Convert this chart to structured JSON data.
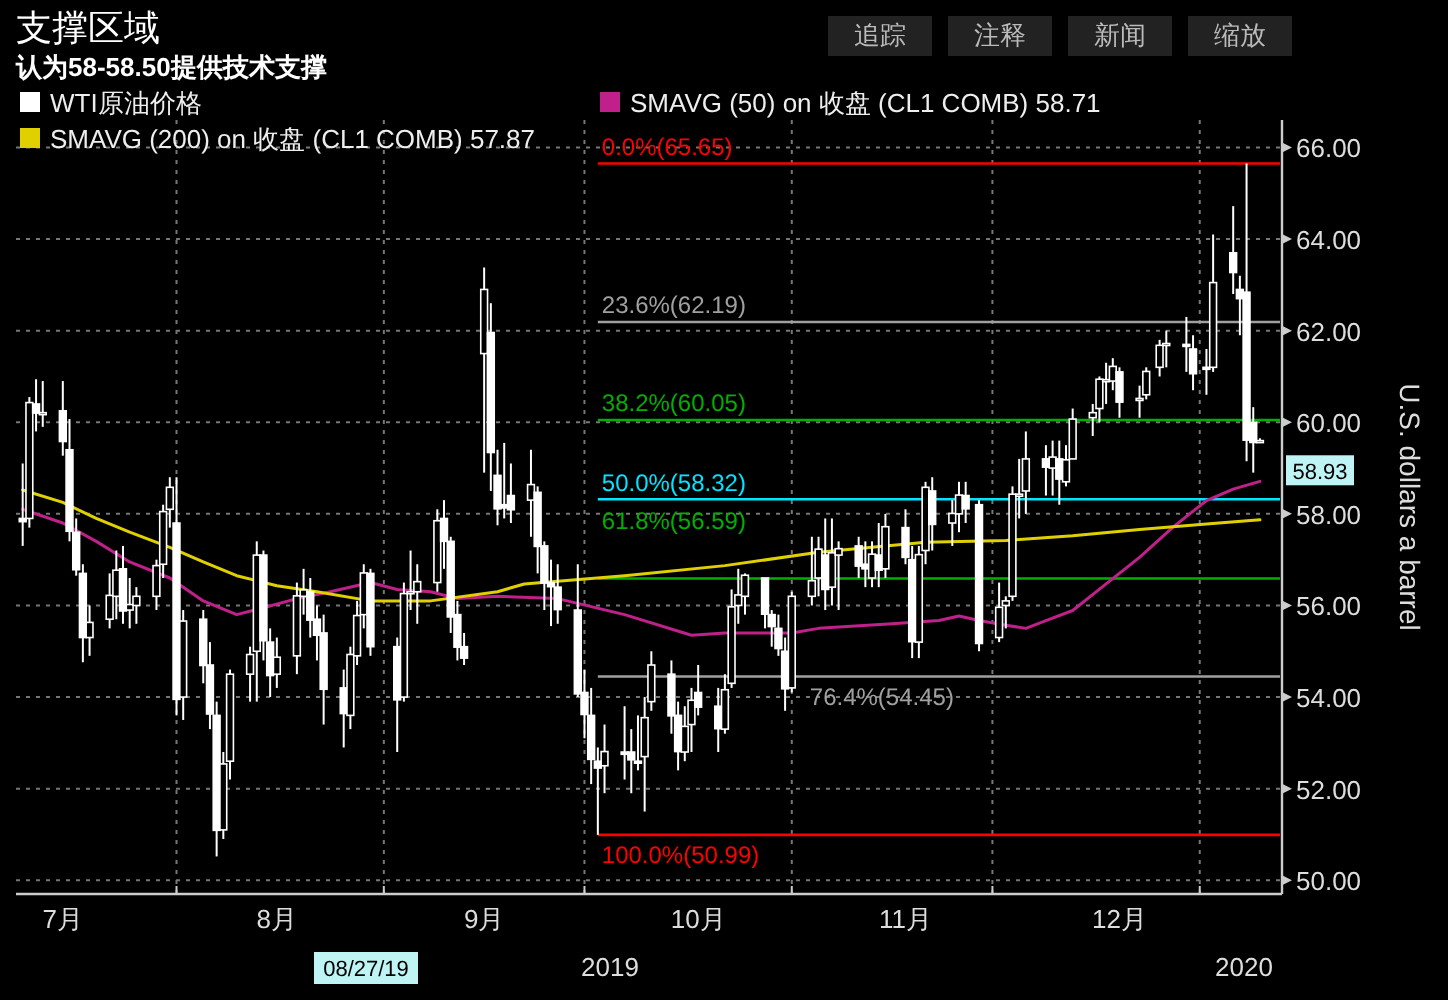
{
  "chart_data": {
    "type": "candlestick",
    "title": "支撑区域",
    "subtitle": "认为58-58.50提供技术支撑",
    "ylabel": "U.S. dollars a barrel",
    "xlim": [
      "2019-07-08",
      "2020-01-13"
    ],
    "xticks": [
      {
        "value": "2019-07-15",
        "label": "7月"
      },
      {
        "value": "2019-08-01",
        "label": null
      },
      {
        "value": "2019-08-16",
        "label": "8月"
      },
      {
        "value": "2019-09-01",
        "label": null
      },
      {
        "value": "2019-09-16",
        "label": "9月"
      },
      {
        "value": "2019-10-01",
        "label": null
      },
      {
        "value": "2019-10-18",
        "label": "10月"
      },
      {
        "value": "2019-11-01",
        "label": null
      },
      {
        "value": "2019-11-18",
        "label": "11月"
      },
      {
        "value": "2019-12-01",
        "label": null
      },
      {
        "value": "2019-12-20",
        "label": "12月"
      },
      {
        "value": "2020-01-01",
        "label": null
      }
    ],
    "ylim": [
      49.7,
      66.6
    ],
    "yticks": [
      {
        "value": 50,
        "label": "50.00"
      },
      {
        "value": 52,
        "label": "52.00"
      },
      {
        "value": 54,
        "label": "54.00"
      },
      {
        "value": 56,
        "label": "56.00"
      },
      {
        "value": 58,
        "label": "58.00"
      },
      {
        "value": 60,
        "label": "60.00"
      },
      {
        "value": 62,
        "label": "62.00"
      },
      {
        "value": 64,
        "label": "64.00"
      },
      {
        "value": 66,
        "label": "66.00"
      }
    ],
    "grid": true,
    "legend": "top left",
    "series": [
      {
        "name": "WTI原油价格",
        "type": "candlestick",
        "color": "#ffffff",
        "x": [
          "2019-07-09",
          "2019-07-10",
          "2019-07-11",
          "2019-07-12",
          "2019-07-15",
          "2019-07-16",
          "2019-07-17",
          "2019-07-18",
          "2019-07-19",
          "2019-07-22",
          "2019-07-23",
          "2019-07-24",
          "2019-07-25",
          "2019-07-26",
          "2019-07-29",
          "2019-07-30",
          "2019-07-31",
          "2019-08-01",
          "2019-08-02",
          "2019-08-05",
          "2019-08-06",
          "2019-08-07",
          "2019-08-08",
          "2019-08-09",
          "2019-08-12",
          "2019-08-13",
          "2019-08-14",
          "2019-08-15",
          "2019-08-16",
          "2019-08-19",
          "2019-08-20",
          "2019-08-21",
          "2019-08-22",
          "2019-08-23",
          "2019-08-26",
          "2019-08-27",
          "2019-08-28",
          "2019-08-29",
          "2019-08-30",
          "2019-09-03",
          "2019-09-04",
          "2019-09-05",
          "2019-09-06",
          "2019-09-09",
          "2019-09-10",
          "2019-09-11",
          "2019-09-12",
          "2019-09-13",
          "2019-09-16",
          "2019-09-17",
          "2019-09-18",
          "2019-09-19",
          "2019-09-20",
          "2019-09-23",
          "2019-09-24",
          "2019-09-25",
          "2019-09-26",
          "2019-09-27",
          "2019-09-30",
          "2019-10-01",
          "2019-10-02",
          "2019-10-03",
          "2019-10-04",
          "2019-10-07",
          "2019-10-08",
          "2019-10-09",
          "2019-10-10",
          "2019-10-11",
          "2019-10-14",
          "2019-10-15",
          "2019-10-16",
          "2019-10-17",
          "2019-10-18",
          "2019-10-21",
          "2019-10-22",
          "2019-10-23",
          "2019-10-24",
          "2019-10-25",
          "2019-10-28",
          "2019-10-29",
          "2019-10-30",
          "2019-10-31",
          "2019-11-01",
          "2019-11-04",
          "2019-11-05",
          "2019-11-06",
          "2019-11-07",
          "2019-11-08",
          "2019-11-11",
          "2019-11-12",
          "2019-11-13",
          "2019-11-14",
          "2019-11-15",
          "2019-11-18",
          "2019-11-19",
          "2019-11-20",
          "2019-11-21",
          "2019-11-22",
          "2019-11-25",
          "2019-11-26",
          "2019-11-27",
          "2019-11-29",
          "2019-12-02",
          "2019-12-03",
          "2019-12-04",
          "2019-12-05",
          "2019-12-06",
          "2019-12-09",
          "2019-12-10",
          "2019-12-11",
          "2019-12-12",
          "2019-12-13",
          "2019-12-16",
          "2019-12-17",
          "2019-12-18",
          "2019-12-19",
          "2019-12-20",
          "2019-12-23",
          "2019-12-24",
          "2019-12-26",
          "2019-12-27",
          "2019-12-30",
          "2019-12-31",
          "2020-01-02",
          "2020-01-03",
          "2020-01-06",
          "2020-01-07",
          "2020-01-08",
          "2020-01-09",
          "2020-01-10"
        ],
        "ohlc": [
          [
            57.9,
            59.1,
            57.3,
            57.83
          ],
          [
            57.9,
            60.55,
            57.7,
            60.43
          ],
          [
            60.4,
            60.94,
            59.8,
            60.2
          ],
          [
            60.2,
            60.9,
            59.9,
            60.21
          ],
          [
            60.25,
            60.9,
            59.27,
            59.58
          ],
          [
            59.4,
            60.07,
            57.4,
            57.62
          ],
          [
            57.6,
            57.9,
            56.65,
            56.78
          ],
          [
            56.7,
            56.9,
            54.76,
            55.3
          ],
          [
            55.3,
            56.0,
            54.9,
            55.63
          ],
          [
            55.7,
            56.7,
            55.5,
            56.22
          ],
          [
            56.2,
            57.2,
            55.7,
            56.77
          ],
          [
            56.8,
            57.3,
            55.6,
            55.88
          ],
          [
            55.9,
            56.6,
            55.5,
            56.02
          ],
          [
            56.0,
            56.4,
            55.6,
            56.2
          ],
          [
            56.2,
            57.0,
            55.9,
            56.87
          ],
          [
            56.9,
            58.2,
            56.6,
            58.05
          ],
          [
            58.1,
            58.8,
            57.7,
            58.58
          ],
          [
            57.8,
            58.8,
            53.6,
            53.95
          ],
          [
            54.0,
            55.9,
            53.5,
            55.66
          ],
          [
            55.7,
            55.9,
            54.3,
            54.69
          ],
          [
            54.7,
            55.2,
            53.3,
            53.63
          ],
          [
            53.6,
            53.9,
            50.52,
            51.09
          ],
          [
            51.1,
            52.8,
            50.9,
            52.54
          ],
          [
            52.6,
            54.6,
            52.2,
            54.5
          ],
          [
            54.5,
            55.1,
            53.9,
            54.93
          ],
          [
            55.0,
            57.4,
            53.9,
            57.1
          ],
          [
            57.1,
            57.2,
            54.8,
            55.23
          ],
          [
            55.2,
            55.5,
            54.0,
            54.47
          ],
          [
            54.5,
            55.3,
            54.2,
            54.87
          ],
          [
            54.9,
            56.5,
            54.5,
            56.21
          ],
          [
            56.2,
            56.8,
            55.8,
            56.34
          ],
          [
            56.3,
            56.6,
            55.3,
            55.68
          ],
          [
            55.7,
            56.0,
            54.8,
            55.35
          ],
          [
            55.4,
            55.8,
            53.4,
            54.17
          ],
          [
            54.2,
            54.6,
            52.9,
            53.64
          ],
          [
            53.6,
            55.1,
            53.3,
            54.93
          ],
          [
            54.9,
            56.1,
            54.7,
            55.78
          ],
          [
            55.8,
            56.9,
            55.5,
            56.71
          ],
          [
            56.7,
            56.8,
            54.9,
            55.1
          ],
          [
            55.1,
            55.3,
            52.8,
            53.94
          ],
          [
            54.0,
            56.5,
            53.9,
            56.26
          ],
          [
            56.3,
            57.2,
            55.9,
            56.3
          ],
          [
            56.3,
            56.9,
            55.6,
            56.52
          ],
          [
            56.5,
            58.1,
            56.3,
            57.85
          ],
          [
            57.9,
            58.3,
            56.8,
            57.4
          ],
          [
            57.4,
            57.5,
            55.4,
            55.75
          ],
          [
            55.8,
            56.1,
            54.8,
            55.09
          ],
          [
            55.1,
            55.4,
            54.7,
            54.85
          ],
          [
            61.5,
            63.38,
            58.9,
            62.9
          ],
          [
            61.96,
            62.6,
            58.5,
            59.34
          ],
          [
            58.84,
            59.4,
            57.75,
            58.11
          ],
          [
            58.2,
            59.55,
            57.9,
            58.13
          ],
          [
            58.4,
            59.1,
            57.8,
            58.09
          ],
          [
            58.3,
            59.4,
            57.5,
            58.64
          ],
          [
            58.47,
            58.6,
            56.7,
            57.29
          ],
          [
            57.3,
            57.4,
            55.9,
            56.49
          ],
          [
            56.5,
            57.0,
            55.55,
            56.41
          ],
          [
            56.4,
            56.9,
            55.6,
            55.91
          ],
          [
            55.9,
            56.9,
            54.0,
            54.07
          ],
          [
            54.1,
            54.6,
            53.1,
            53.62
          ],
          [
            53.6,
            54.2,
            52.1,
            52.64
          ],
          [
            52.6,
            52.9,
            50.99,
            52.45
          ],
          [
            52.5,
            53.4,
            51.9,
            52.81
          ],
          [
            52.8,
            53.8,
            52.2,
            52.75
          ],
          [
            52.8,
            53.3,
            51.9,
            52.63
          ],
          [
            52.6,
            53.6,
            52.4,
            52.59
          ],
          [
            52.7,
            54.0,
            51.5,
            53.55
          ],
          [
            53.9,
            55.0,
            53.7,
            54.7
          ],
          [
            54.5,
            54.8,
            53.2,
            53.59
          ],
          [
            53.6,
            53.9,
            52.4,
            52.81
          ],
          [
            52.8,
            53.8,
            52.6,
            53.36
          ],
          [
            53.4,
            54.2,
            52.8,
            53.93
          ],
          [
            54.1,
            54.7,
            53.6,
            53.78
          ],
          [
            53.8,
            54.2,
            52.8,
            53.31
          ],
          [
            53.3,
            54.5,
            53.2,
            54.16
          ],
          [
            54.3,
            56.35,
            54.2,
            55.97
          ],
          [
            56.0,
            56.8,
            55.6,
            56.23
          ],
          [
            56.2,
            56.7,
            55.8,
            56.66
          ],
          [
            56.6,
            56.6,
            55.5,
            55.81
          ],
          [
            55.8,
            55.9,
            55.1,
            55.54
          ],
          [
            55.5,
            55.8,
            54.9,
            55.06
          ],
          [
            55.0,
            55.3,
            53.7,
            54.18
          ],
          [
            54.2,
            56.3,
            54.1,
            56.2
          ],
          [
            56.2,
            57.5,
            56.0,
            56.54
          ],
          [
            56.6,
            57.5,
            56.2,
            57.23
          ],
          [
            57.1,
            57.9,
            55.9,
            56.35
          ],
          [
            56.4,
            57.9,
            56.0,
            57.15
          ],
          [
            57.1,
            57.4,
            55.9,
            57.24
          ],
          [
            57.3,
            57.5,
            56.6,
            56.86
          ],
          [
            56.9,
            57.4,
            56.4,
            56.8
          ],
          [
            56.6,
            57.4,
            56.4,
            57.12
          ],
          [
            57.1,
            57.8,
            56.4,
            56.77
          ],
          [
            56.8,
            58.0,
            56.6,
            57.72
          ],
          [
            57.7,
            58.1,
            56.9,
            57.05
          ],
          [
            57.0,
            57.3,
            54.85,
            55.21
          ],
          [
            55.2,
            57.3,
            54.85,
            57.11
          ],
          [
            57.2,
            58.7,
            56.9,
            58.58
          ],
          [
            58.5,
            58.8,
            57.2,
            57.77
          ],
          [
            57.8,
            58.3,
            57.3,
            58.01
          ],
          [
            58.0,
            58.7,
            57.6,
            58.41
          ],
          [
            58.4,
            58.7,
            57.8,
            58.11
          ],
          [
            58.2,
            58.3,
            55.0,
            55.17
          ],
          [
            55.3,
            56.5,
            55.2,
            55.96
          ],
          [
            56.0,
            56.2,
            55.5,
            56.1
          ],
          [
            56.2,
            58.6,
            56.1,
            58.43
          ],
          [
            58.4,
            59.2,
            57.9,
            58.43
          ],
          [
            58.5,
            59.8,
            58.0,
            59.2
          ],
          [
            59.2,
            59.5,
            58.4,
            59.02
          ],
          [
            59.0,
            59.6,
            58.4,
            59.24
          ],
          [
            59.2,
            59.6,
            58.2,
            58.76
          ],
          [
            58.7,
            59.5,
            58.6,
            59.18
          ],
          [
            59.2,
            60.3,
            59.2,
            60.07
          ],
          [
            60.1,
            60.4,
            59.7,
            60.21
          ],
          [
            60.3,
            61.0,
            60.0,
            60.94
          ],
          [
            60.9,
            61.3,
            60.4,
            60.93
          ],
          [
            60.9,
            61.4,
            60.7,
            61.22
          ],
          [
            61.1,
            61.2,
            60.1,
            60.44
          ],
          [
            60.5,
            60.8,
            60.1,
            60.52
          ],
          [
            60.6,
            61.2,
            60.5,
            61.11
          ],
          [
            61.2,
            61.8,
            61.0,
            61.68
          ],
          [
            61.7,
            62.0,
            61.2,
            61.72
          ],
          [
            61.7,
            62.3,
            61.1,
            61.68
          ],
          [
            61.6,
            61.9,
            60.7,
            61.06
          ],
          [
            61.2,
            61.6,
            60.6,
            61.18
          ],
          [
            61.2,
            64.1,
            61.1,
            63.05
          ],
          [
            63.7,
            64.72,
            62.8,
            63.27
          ],
          [
            62.9,
            63.2,
            61.9,
            62.7
          ],
          [
            62.84,
            65.65,
            59.15,
            59.61
          ],
          [
            60.0,
            60.33,
            58.9,
            59.56
          ],
          [
            59.6,
            59.65,
            59.55,
            59.6
          ]
        ]
      },
      {
        "name": "SMAVG (50) on 收盘 (CL1 COMB) 58.71",
        "type": "line",
        "color": "#c0208a",
        "x": [
          "2019-07-09",
          "2019-07-15",
          "2019-07-20",
          "2019-07-25",
          "2019-07-31",
          "2019-08-05",
          "2019-08-10",
          "2019-08-14",
          "2019-08-19",
          "2019-08-24",
          "2019-08-30",
          "2019-09-03",
          "2019-09-08",
          "2019-09-12",
          "2019-09-18",
          "2019-09-27",
          "2019-10-07",
          "2019-10-17",
          "2019-10-22",
          "2019-11-01",
          "2019-11-05",
          "2019-11-16",
          "2019-11-23",
          "2019-11-26",
          "2019-11-29",
          "2019-12-03",
          "2019-12-06",
          "2019-12-09",
          "2019-12-13",
          "2019-12-18",
          "2019-12-23",
          "2019-12-28",
          "2020-01-02",
          "2020-01-06",
          "2020-01-10"
        ],
        "values": [
          58.1,
          57.8,
          57.4,
          56.95,
          56.6,
          56.1,
          55.8,
          55.95,
          56.15,
          56.3,
          56.5,
          56.35,
          56.3,
          56.15,
          56.2,
          56.15,
          55.8,
          55.35,
          55.4,
          55.4,
          55.5,
          55.6,
          55.67,
          55.77,
          55.67,
          55.57,
          55.5,
          55.67,
          55.89,
          56.47,
          57.05,
          57.71,
          58.29,
          58.54,
          58.71
        ]
      },
      {
        "name": "SMAVG (200) on 收盘 (CL1 COMB) 57.87",
        "type": "line",
        "color": "#e0d000",
        "x": [
          "2019-07-09",
          "2019-07-15",
          "2019-07-20",
          "2019-07-25",
          "2019-07-31",
          "2019-08-05",
          "2019-08-10",
          "2019-08-16",
          "2019-08-22",
          "2019-08-30",
          "2019-09-08",
          "2019-09-18",
          "2019-09-22",
          "2019-10-07",
          "2019-10-22",
          "2019-11-05",
          "2019-11-21",
          "2019-12-03",
          "2019-12-13",
          "2019-12-23",
          "2020-01-02",
          "2020-01-10"
        ],
        "values": [
          58.52,
          58.25,
          57.9,
          57.6,
          57.27,
          56.95,
          56.65,
          56.43,
          56.3,
          56.1,
          56.1,
          56.3,
          56.47,
          56.65,
          56.87,
          57.16,
          57.38,
          57.42,
          57.52,
          57.66,
          57.78,
          57.87
        ]
      }
    ],
    "ref_lines": [
      {
        "axis": "y",
        "value": 65.65,
        "label": "0.0%(65.65)",
        "color": "#ff0000"
      },
      {
        "axis": "y",
        "value": 62.19,
        "label": "23.6%(62.19)",
        "color": "#a0a0a0"
      },
      {
        "axis": "y",
        "value": 60.05,
        "label": "38.2%(60.05)",
        "color": "#00b000"
      },
      {
        "axis": "y",
        "value": 58.32,
        "label": "50.0%(58.32)",
        "color": "#00e5ff"
      },
      {
        "axis": "y",
        "value": 56.59,
        "label": "61.8%(56.59)",
        "color": "#00b000"
      },
      {
        "axis": "y",
        "value": 54.45,
        "label": "76.4%(54.45)",
        "color": "#a0a0a0"
      },
      {
        "axis": "y",
        "value": 50.99,
        "label": "100.0%(50.99)",
        "color": "#ff0000"
      }
    ],
    "annotations": [
      "追踪",
      "注释",
      "新闻",
      "缩放",
      "2019",
      "2020",
      "08/27/19",
      {
        "text": "58.93",
        "x": "2020-01-10",
        "y": 58.93
      }
    ]
  }
}
